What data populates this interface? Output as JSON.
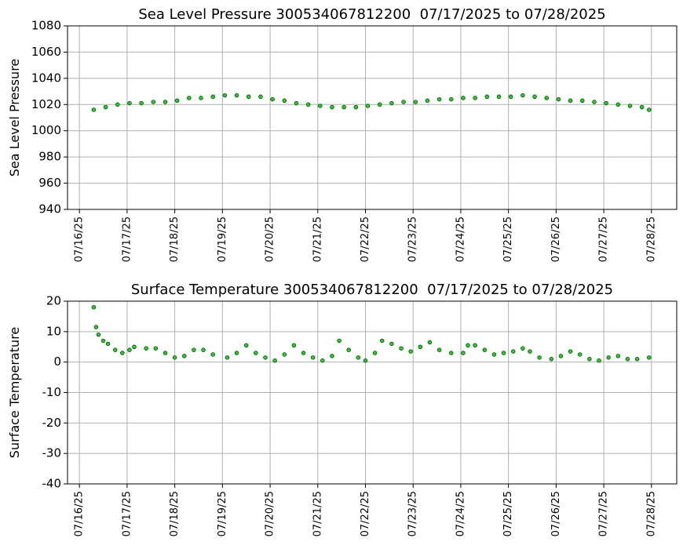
{
  "chart_data": [
    {
      "type": "scatter",
      "title": "Sea Level Pressure 300534067812200  07/17/2025 to 07/28/2025",
      "y_label": "Sea Level Pressure",
      "x": [
        16.3,
        16.55,
        16.8,
        17.05,
        17.3,
        17.55,
        17.8,
        18.05,
        18.3,
        18.55,
        18.8,
        19.05,
        19.3,
        19.55,
        19.8,
        20.05,
        20.3,
        20.55,
        20.8,
        21.05,
        21.3,
        21.55,
        21.8,
        22.05,
        22.3,
        22.55,
        22.8,
        23.05,
        23.3,
        23.55,
        23.8,
        24.05,
        24.3,
        24.55,
        24.8,
        25.05,
        25.3,
        25.55,
        25.8,
        26.05,
        26.3,
        26.55,
        26.8,
        27.05,
        27.3,
        27.55,
        27.8,
        27.95
      ],
      "values": [
        1016,
        1018,
        1020,
        1021,
        1021,
        1022,
        1022,
        1023,
        1025,
        1025,
        1026,
        1027,
        1027,
        1026,
        1026,
        1024,
        1023,
        1021,
        1020,
        1019,
        1018,
        1018,
        1018,
        1019,
        1020,
        1021,
        1022,
        1022,
        1023,
        1024,
        1024,
        1025,
        1025,
        1026,
        1026,
        1026,
        1027,
        1026,
        1025,
        1024,
        1023,
        1023,
        1022,
        1021,
        1020,
        1019,
        1018,
        1016
      ],
      "color": "#22cc22",
      "edgecolor": "#0a3a0a",
      "xlim": [
        15.75,
        28.53
      ],
      "ylim": [
        940,
        1080
      ],
      "xticks": [
        {
          "value": 16,
          "label": "07/16/25"
        },
        {
          "value": 17,
          "label": "07/17/25"
        },
        {
          "value": 18,
          "label": "07/18/25"
        },
        {
          "value": 19,
          "label": "07/19/25"
        },
        {
          "value": 20,
          "label": "07/20/25"
        },
        {
          "value": 21,
          "label": "07/21/25"
        },
        {
          "value": 22,
          "label": "07/22/25"
        },
        {
          "value": 23,
          "label": "07/23/25"
        },
        {
          "value": 24,
          "label": "07/24/25"
        },
        {
          "value": 25,
          "label": "07/25/25"
        },
        {
          "value": 26,
          "label": "07/26/25"
        },
        {
          "value": 27,
          "label": "07/27/25"
        },
        {
          "value": 28,
          "label": "07/28/25"
        }
      ],
      "yticks": [
        940,
        960,
        980,
        1000,
        1020,
        1040,
        1060,
        1080
      ],
      "grid": true
    },
    {
      "type": "scatter",
      "title": "Surface Temperature 300534067812200  07/17/2025 to 07/28/2025",
      "y_label": "Surface Temperature",
      "x": [
        16.3,
        16.35,
        16.4,
        16.5,
        16.6,
        16.75,
        16.9,
        17.05,
        17.15,
        17.4,
        17.6,
        17.8,
        18.0,
        18.2,
        18.4,
        18.6,
        18.8,
        19.1,
        19.3,
        19.5,
        19.7,
        19.9,
        20.1,
        20.3,
        20.5,
        20.7,
        20.9,
        21.1,
        21.3,
        21.45,
        21.65,
        21.85,
        22.0,
        22.2,
        22.35,
        22.55,
        22.75,
        22.95,
        23.15,
        23.35,
        23.55,
        23.8,
        24.05,
        24.15,
        24.3,
        24.5,
        24.7,
        24.9,
        25.1,
        25.3,
        25.45,
        25.65,
        25.9,
        26.1,
        26.3,
        26.5,
        26.7,
        26.9,
        27.1,
        27.3,
        27.5,
        27.7,
        27.95
      ],
      "values": [
        18,
        11.5,
        9,
        7,
        6,
        4,
        3,
        4,
        5,
        4.5,
        4.5,
        3,
        1.5,
        2,
        4,
        4,
        2.5,
        1.5,
        3,
        5.5,
        3,
        1.5,
        0.5,
        2.5,
        5.5,
        3,
        1.5,
        0.5,
        2,
        7,
        4,
        1.5,
        0.5,
        3,
        7,
        6,
        4.5,
        3.5,
        5,
        6.5,
        4,
        3,
        3,
        5.5,
        5.5,
        4,
        2.5,
        3,
        3.5,
        4.5,
        3.5,
        1.5,
        1,
        2,
        3.5,
        2.5,
        1,
        0.5,
        1.5,
        2,
        1,
        1,
        1.5
      ],
      "color": "#22cc22",
      "edgecolor": "#0a3a0a",
      "xlim": [
        15.75,
        28.53
      ],
      "ylim": [
        -40,
        20
      ],
      "xticks": [
        {
          "value": 16,
          "label": "07/16/25"
        },
        {
          "value": 17,
          "label": "07/17/25"
        },
        {
          "value": 18,
          "label": "07/18/25"
        },
        {
          "value": 19,
          "label": "07/19/25"
        },
        {
          "value": 20,
          "label": "07/20/25"
        },
        {
          "value": 21,
          "label": "07/21/25"
        },
        {
          "value": 22,
          "label": "07/22/25"
        },
        {
          "value": 23,
          "label": "07/23/25"
        },
        {
          "value": 24,
          "label": "07/24/25"
        },
        {
          "value": 25,
          "label": "07/25/25"
        },
        {
          "value": 26,
          "label": "07/26/25"
        },
        {
          "value": 27,
          "label": "07/27/25"
        },
        {
          "value": 28,
          "label": "07/28/25"
        }
      ],
      "yticks": [
        -40,
        -30,
        -20,
        -10,
        0,
        10,
        20
      ],
      "grid": true
    }
  ]
}
